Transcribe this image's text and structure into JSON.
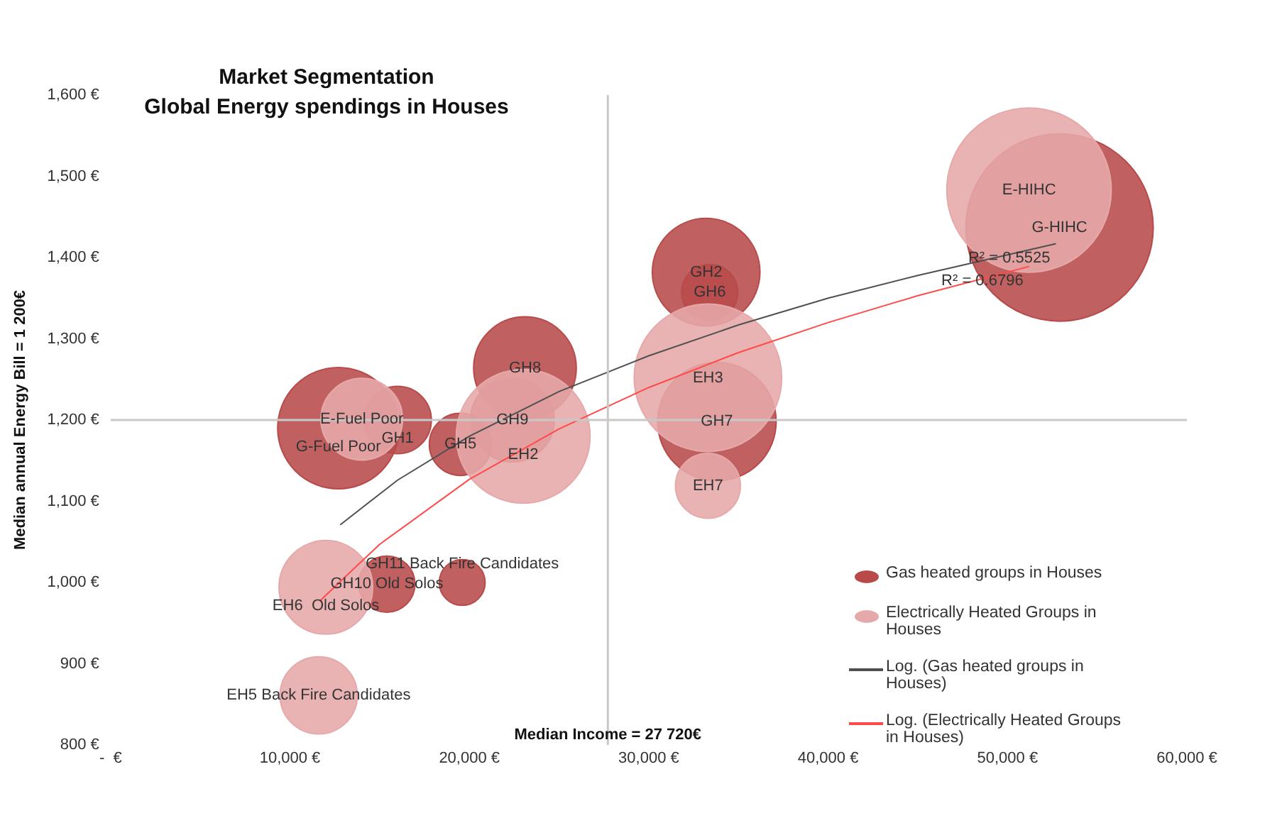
{
  "chart_data": {
    "type": "bubble",
    "title": "Market Segmentation",
    "subtitle": "Global Energy spendings in Houses",
    "xlabel": "Median Income = 27 720€",
    "ylabel": "Median annual Energy Bill = 1 200€",
    "xlim": [
      0,
      60000
    ],
    "ylim": [
      800,
      1600
    ],
    "xticks": [
      {
        "value": 0,
        "label": "-  €"
      },
      {
        "value": 10000,
        "label": "10,000 €"
      },
      {
        "value": 20000,
        "label": "20,000 €"
      },
      {
        "value": 30000,
        "label": "30,000 €"
      },
      {
        "value": 40000,
        "label": "40,000 €"
      },
      {
        "value": 50000,
        "label": "50,000 €"
      },
      {
        "value": 60000,
        "label": "60,000 €"
      }
    ],
    "yticks": [
      {
        "value": 800,
        "label": "800 €"
      },
      {
        "value": 900,
        "label": "900 €"
      },
      {
        "value": 1000,
        "label": "1,000 €"
      },
      {
        "value": 1100,
        "label": "1,100 €"
      },
      {
        "value": 1200,
        "label": "1,200 €"
      },
      {
        "value": 1300,
        "label": "1,300 €"
      },
      {
        "value": 1400,
        "label": "1,400 €"
      },
      {
        "value": 1500,
        "label": "1,500 €"
      },
      {
        "value": 1600,
        "label": "1,600 €"
      }
    ],
    "grid": false,
    "legend": "bottom right",
    "ref_lines": [
      {
        "axis": "x",
        "value": 27720
      },
      {
        "axis": "y",
        "value": 1200
      }
    ],
    "series": [
      {
        "name": "Gas heated groups in Houses",
        "type": "bubble",
        "color": "#b84a4a",
        "x": [
          12700,
          16000,
          19500,
          22400,
          23100,
          33200,
          33400,
          33800,
          52900,
          15400,
          19600
        ],
        "values": [
          1190,
          1200,
          1170,
          1200,
          1264,
          1382,
          1357,
          1198,
          1437,
          998,
          1000
        ],
        "sizes": [
          0.42,
          0.13,
          0.11,
          0.2,
          0.3,
          0.33,
          0.09,
          0.4,
          1,
          0.09,
          0.06
        ]
      },
      {
        "name": "Electrically Heated Groups in Houses",
        "type": "bubble",
        "color": "#e6a9a9",
        "x": [
          14000,
          23000,
          33300,
          33300,
          51200,
          12000,
          11600
        ],
        "values": [
          1201,
          1180,
          1252,
          1119,
          1483,
          994,
          861
        ],
        "sizes": [
          0.19,
          0.51,
          0.62,
          0.12,
          0.77,
          0.25,
          0.17
        ]
      },
      {
        "name": "Log. (Gas heated groups in Houses)",
        "type": "line",
        "color": "#505050",
        "x": [
          12800,
          16000,
          20000,
          25000,
          30000,
          35000,
          40000,
          45000,
          52700
        ],
        "values": [
          1071,
          1126,
          1180,
          1235,
          1279,
          1317,
          1350,
          1378,
          1417
        ]
      },
      {
        "name": "Log. (Electrically Heated Groups in Houses)",
        "type": "line",
        "color": "#ff4a4a",
        "x": [
          11700,
          15000,
          20000,
          25000,
          30000,
          35000,
          40000,
          45000,
          51200
        ],
        "values": [
          978,
          1047,
          1127,
          1189,
          1240,
          1283,
          1320,
          1353,
          1389
        ]
      }
    ],
    "annotations": [
      {
        "text": "E-Fuel Poor",
        "x": 14000,
        "y": 1201
      },
      {
        "text": "G-Fuel Poor",
        "x": 12700,
        "y": 1190
      },
      {
        "text": "GH1",
        "x": 16000,
        "y": 1200
      },
      {
        "text": "GH5",
        "x": 19500,
        "y": 1170
      },
      {
        "text": "GH9",
        "x": 22400,
        "y": 1200
      },
      {
        "text": "EH2",
        "x": 23000,
        "y": 1180
      },
      {
        "text": "GH8",
        "x": 23100,
        "y": 1264
      },
      {
        "text": "GH2",
        "x": 33200,
        "y": 1382
      },
      {
        "text": "GH6",
        "x": 33400,
        "y": 1357
      },
      {
        "text": "EH3",
        "x": 33300,
        "y": 1252
      },
      {
        "text": "GH7",
        "x": 33800,
        "y": 1198
      },
      {
        "text": "EH7",
        "x": 33300,
        "y": 1119
      },
      {
        "text": "E-HIHC",
        "x": 51200,
        "y": 1483
      },
      {
        "text": "G-HIHC",
        "x": 52900,
        "y": 1437
      },
      {
        "text": "GH10 Old Solos",
        "x": 15400,
        "y": 998
      },
      {
        "text": "EH6  Old Solos",
        "x": 12000,
        "y": 994
      },
      {
        "text": "GH11 Back Fire Candidates",
        "x": 19600,
        "y": 1000
      },
      {
        "text": "EH5 Back Fire Candidates",
        "x": 11600,
        "y": 861
      },
      {
        "text": "R² = 0.5525",
        "x": 52700,
        "y": 1417
      },
      {
        "text": "R² = 0.6796",
        "x": 51200,
        "y": 1389
      }
    ]
  }
}
